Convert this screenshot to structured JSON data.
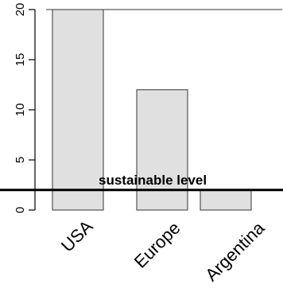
{
  "chart_data": {
    "type": "bar",
    "categories": [
      "USA",
      "Europe",
      "Argentina"
    ],
    "values": [
      20,
      12,
      2
    ],
    "ylim": [
      0,
      20
    ],
    "yticks": [
      0,
      5,
      10,
      15,
      20
    ],
    "bar_color": "#e0e0e0",
    "edge_color": "#333333",
    "reference_line": {
      "value": 2,
      "label": "sustainable level"
    }
  }
}
